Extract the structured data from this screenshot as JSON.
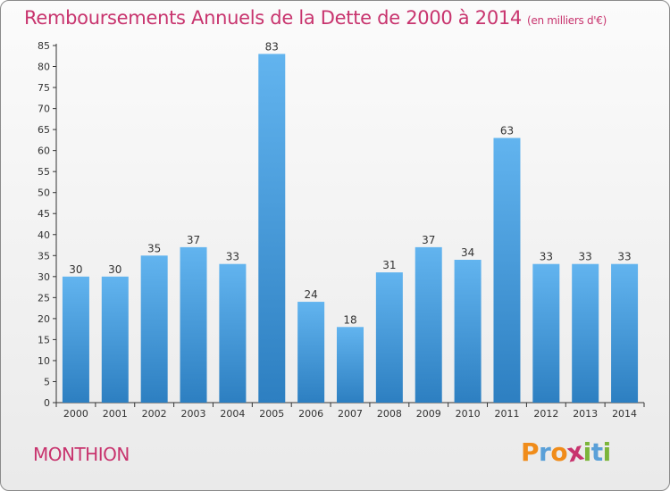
{
  "header": {
    "title": "Remboursements Annuels de la Dette de 2000 à 2014",
    "subtitle": "(en milliers d'€)"
  },
  "footer": {
    "commune": "MONTHION",
    "logo_letters": [
      "P",
      "r",
      "o",
      "x",
      "i",
      "t",
      "i"
    ],
    "logo_colors": [
      "#f08c1a",
      "#5aa0d8",
      "#f08c1a",
      "#c8346e",
      "#7cb53a",
      "#5aa0d8",
      "#7cb53a"
    ]
  },
  "colors": {
    "title": "#c8346e",
    "bar_top": "#62b4ef",
    "bar_bottom": "#2d7fc1",
    "axis": "#333333"
  },
  "chart_data": {
    "type": "bar",
    "title": "Remboursements Annuels de la Dette de 2000 à 2014",
    "ylabel": "en milliers d'€",
    "xlabel": "",
    "categories": [
      "2000",
      "2001",
      "2002",
      "2003",
      "2004",
      "2005",
      "2006",
      "2007",
      "2008",
      "2009",
      "2010",
      "2011",
      "2012",
      "2013",
      "2014"
    ],
    "values": [
      30,
      30,
      35,
      37,
      33,
      83,
      24,
      18,
      31,
      37,
      34,
      63,
      33,
      33,
      33
    ],
    "ylim": [
      0,
      85
    ],
    "ytick_step": 5,
    "grid": false
  }
}
